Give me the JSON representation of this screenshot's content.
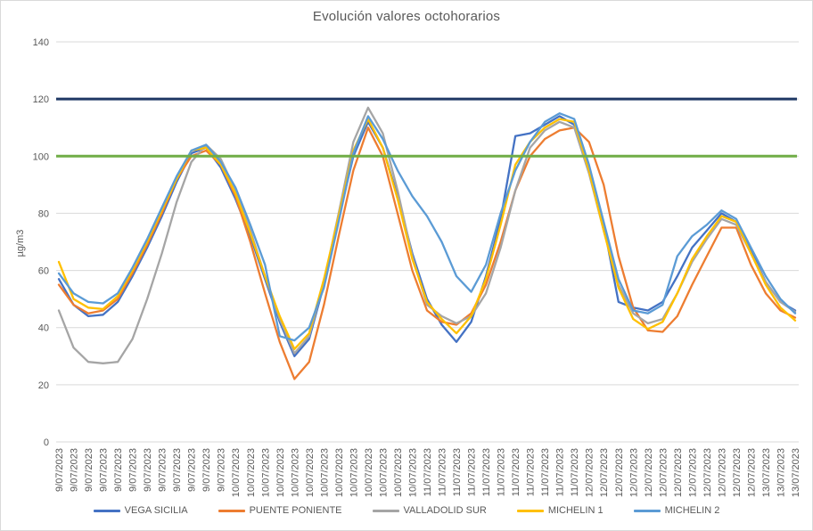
{
  "chart_data": {
    "type": "line",
    "title": "Evolución valores octohorarios",
    "ylabel": "µg/m3",
    "ylim": [
      0,
      140
    ],
    "y_ticks": [
      0,
      20,
      40,
      60,
      80,
      100,
      120,
      140
    ],
    "grid": true,
    "legend_position": "bottom",
    "x_labels": [
      "9/07/2023",
      "9/07/2023",
      "9/07/2023",
      "9/07/2023",
      "9/07/2023",
      "9/07/2023",
      "9/07/2023",
      "9/07/2023",
      "9/07/2023",
      "9/07/2023",
      "9/07/2023",
      "9/07/2023",
      "10/07/2023",
      "10/07/2023",
      "10/07/2023",
      "10/07/2023",
      "10/07/2023",
      "10/07/2023",
      "10/07/2023",
      "10/07/2023",
      "10/07/2023",
      "10/07/2023",
      "10/07/2023",
      "10/07/2023",
      "10/07/2023",
      "11/07/2023",
      "11/07/2023",
      "11/07/2023",
      "11/07/2023",
      "11/07/2023",
      "11/07/2023",
      "11/07/2023",
      "11/07/2023",
      "11/07/2023",
      "11/07/2023",
      "11/07/2023",
      "12/07/2023",
      "12/07/2023",
      "12/07/2023",
      "12/07/2023",
      "12/07/2023",
      "12/07/2023",
      "12/07/2023",
      "12/07/2023",
      "12/07/2023",
      "12/07/2023",
      "12/07/2023",
      "12/07/2023",
      "13/07/2023",
      "13/07/2023",
      "13/07/2023"
    ],
    "series": [
      {
        "name": "VEGA SICILIA",
        "color": "#4472C4",
        "values": [
          57,
          48,
          44,
          44.5,
          49,
          58,
          68,
          79,
          91,
          101,
          103,
          96,
          85,
          72,
          57,
          42,
          30,
          36,
          55,
          78,
          100,
          112,
          103,
          86,
          66,
          50,
          41,
          35,
          42,
          58,
          78,
          107,
          108,
          111,
          114,
          111,
          96,
          76,
          49,
          47,
          46,
          49,
          58,
          68,
          74,
          80,
          77,
          67,
          56,
          49,
          46
        ]
      },
      {
        "name": "PUENTE PONIENTE",
        "color": "#ED7D31",
        "values": [
          55,
          48,
          45,
          46,
          50,
          59,
          69,
          80,
          92,
          100,
          102,
          97,
          86,
          70,
          52,
          35,
          22,
          28,
          48,
          72,
          95,
          110,
          100,
          80,
          60,
          46,
          42,
          41,
          45,
          55,
          70,
          88,
          100,
          106,
          109,
          110,
          105,
          90,
          65,
          47,
          39,
          38.5,
          44,
          55,
          65,
          75,
          75,
          62,
          52,
          46,
          43.5
        ]
      },
      {
        "name": "VALLADOLID SUR",
        "color": "#A5A5A5",
        "values": [
          46,
          33,
          28,
          27.5,
          28,
          36,
          50,
          66,
          84,
          98,
          104,
          99,
          88,
          74,
          58,
          43,
          31,
          37,
          56,
          80,
          105,
          117,
          108,
          88,
          65,
          48,
          44,
          41.5,
          44,
          52,
          68,
          88,
          103,
          109,
          112,
          110,
          94,
          74,
          55,
          45,
          41.5,
          43,
          52,
          63,
          71,
          78,
          76,
          66,
          56,
          49,
          45.5
        ]
      },
      {
        "name": "MICHELIN 1",
        "color": "#FFC000",
        "values": [
          63,
          50,
          47,
          46.5,
          51,
          60,
          70,
          81,
          92,
          102,
          103,
          97,
          87,
          73,
          58,
          44,
          32.5,
          38,
          57,
          79,
          102,
          113,
          103,
          85,
          64,
          49,
          43,
          38,
          44,
          57,
          76,
          97,
          105,
          110,
          113,
          112,
          95,
          74,
          54,
          43,
          39.5,
          42,
          52,
          64,
          72,
          79,
          77,
          66,
          55,
          47,
          42.5
        ]
      },
      {
        "name": "MICHELIN 2",
        "color": "#5B9BD5",
        "values": [
          59,
          52,
          49,
          48.5,
          52,
          61,
          71,
          82,
          93,
          102,
          104,
          98,
          89,
          76,
          62,
          37,
          35.5,
          40,
          54,
          77,
          101,
          114,
          106,
          95,
          86,
          79,
          70,
          58,
          52.5,
          62,
          80,
          95,
          105,
          112,
          115,
          113,
          97,
          77,
          57,
          46,
          45,
          48,
          65,
          72,
          76,
          81,
          78,
          68,
          58,
          50,
          45
        ]
      }
    ],
    "reference_lines": [
      {
        "value": 120,
        "color": "#1F3864"
      },
      {
        "value": 100,
        "color": "#70AD47"
      }
    ]
  }
}
